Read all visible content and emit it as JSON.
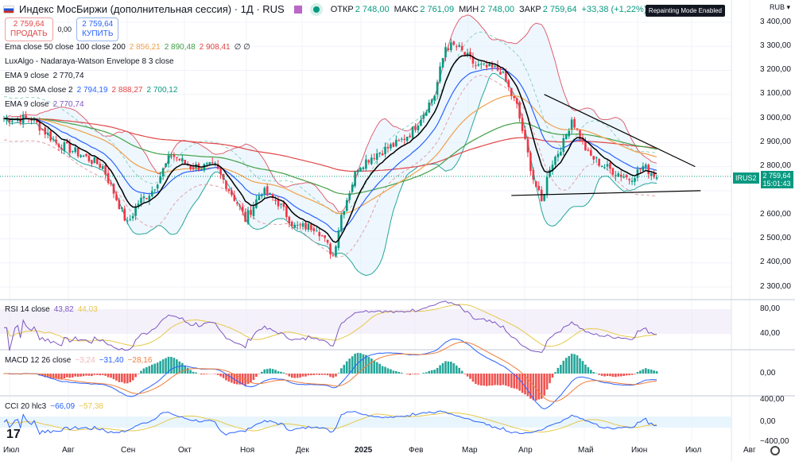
{
  "header": {
    "title": "Индекс МосБиржи (дополнительная сессия) · 1Д · RUS",
    "ohlc": [
      {
        "k": "ОТКР",
        "v": "2 748,00"
      },
      {
        "k": "МАКС",
        "v": "2 761,09"
      },
      {
        "k": "МИН",
        "v": "2 748,00"
      },
      {
        "k": "ЗАКР",
        "v": "2 759,64"
      }
    ],
    "change": "+33,38 (+1,22%)"
  },
  "trade": {
    "sell_price": "2 759,64",
    "sell_label": "ПРОДАТЬ",
    "spread": "0,00",
    "buy_price": "2 759,64",
    "buy_label": "КУПИТЬ"
  },
  "badge": "Repainting Mode Enabled",
  "currency": "RUB",
  "legends": {
    "ema3": {
      "name": "Ema close 50 close 100 close 200",
      "v": [
        "2 856,21",
        "2 890,48",
        "2 908,41"
      ],
      "tail": "∅ ∅"
    },
    "lux": {
      "name": "LuxAlgo - Nadaraya-Watson Envelope 8 3 close"
    },
    "ema9a": {
      "name": "EMA 9 close",
      "v": "2 770,74"
    },
    "bb": {
      "name": "BB 20 SMA close 2",
      "v": [
        "2 794,19",
        "2 888,27",
        "2 700,12"
      ]
    },
    "ema9b": {
      "name": "EMA 9 close",
      "v": "2 770,74"
    },
    "rsi": {
      "name": "RSI 14 close",
      "v": [
        "43,82",
        "44,03"
      ]
    },
    "macd": {
      "name": "MACD 12 26 close",
      "v": [
        "−3,24",
        "−31,40",
        "−28,16"
      ]
    },
    "cci": {
      "name": "CCI 20 hlc3",
      "v": [
        "−66,09",
        "−57,38"
      ]
    }
  },
  "price_axis": [
    "3 400,00",
    "3 300,00",
    "3 200,00",
    "3 100,00",
    "3 000,00",
    "2 900,00",
    "2 800,00",
    "2 600,00",
    "2 500,00",
    "2 400,00",
    "2 300,00"
  ],
  "price_label": {
    "symbol": "IRUS2",
    "price": "2 759,64",
    "countdown": "15:01:43"
  },
  "rsi_axis": [
    "80,00",
    "40,00"
  ],
  "macd_axis": [
    "0,00"
  ],
  "cci_axis": [
    "400,00",
    "0,00",
    "−400,00"
  ],
  "time_axis": [
    "Июл",
    "Авг",
    "Сен",
    "Окт",
    "Ноя",
    "Дек",
    "2025",
    "Фев",
    "Мар",
    "Апр",
    "Май",
    "Июн",
    "Июл",
    "Авг"
  ],
  "colors": {
    "up": "#089981",
    "down": "#f23645",
    "ema50": "#f0a04b",
    "ema100": "#43a047",
    "ema200": "#e04646",
    "ema9": "#000000",
    "bb": "#2962ff"
  },
  "chart_data": {
    "type": "candlestick",
    "keypoints_bar_price": [
      [
        0,
        3000
      ],
      [
        10,
        3000
      ],
      [
        19,
        2900
      ],
      [
        28,
        2850
      ],
      [
        36,
        2800
      ],
      [
        45,
        2560
      ],
      [
        49,
        2650
      ],
      [
        54,
        2700
      ],
      [
        61,
        2850
      ],
      [
        68,
        2800
      ],
      [
        77,
        2800
      ],
      [
        85,
        2650
      ],
      [
        88,
        2580
      ],
      [
        94,
        2700
      ],
      [
        100,
        2650
      ],
      [
        106,
        2550
      ],
      [
        114,
        2550
      ],
      [
        120,
        2430
      ],
      [
        123,
        2600
      ],
      [
        129,
        2800
      ],
      [
        135,
        2850
      ],
      [
        144,
        2900
      ],
      [
        149,
        2950
      ],
      [
        157,
        3100
      ],
      [
        161,
        3300
      ],
      [
        165,
        3300
      ],
      [
        172,
        3220
      ],
      [
        181,
        3200
      ],
      [
        187,
        3050
      ],
      [
        193,
        2750
      ],
      [
        196,
        2650
      ],
      [
        199,
        2800
      ],
      [
        204,
        2900
      ],
      [
        207,
        3000
      ],
      [
        213,
        2850
      ],
      [
        219,
        2800
      ],
      [
        228,
        2750
      ],
      [
        233,
        2800
      ],
      [
        238,
        2760
      ]
    ],
    "trendlines": [
      [
        [
          197,
          3100
        ],
        [
          252,
          2800
        ]
      ],
      [
        [
          185,
          2680
        ],
        [
          254,
          2700
        ]
      ]
    ],
    "ylim": [
      2250,
      3450
    ]
  }
}
